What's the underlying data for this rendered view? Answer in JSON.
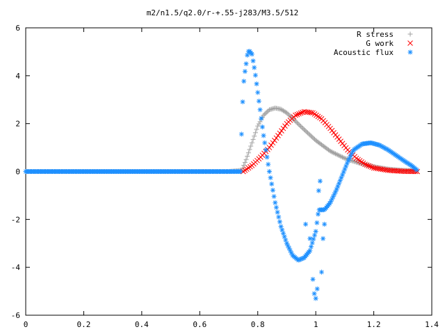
{
  "chart_data": {
    "type": "scatter",
    "title": "m2/n1.5/q2.0/r-+.55-j283/M3.5/512",
    "xlabel": "",
    "ylabel": "",
    "xlim": [
      0,
      1.4
    ],
    "ylim": [
      -6,
      6
    ],
    "x_ticks": [
      "0",
      "0.2",
      "0.4",
      "0.6",
      "0.8",
      "1",
      "1.2",
      "1.4"
    ],
    "y_ticks": [
      "6",
      "4",
      "2",
      "0",
      "-2",
      "-4",
      "-6"
    ],
    "grid": false,
    "legend_position": "top-right",
    "series": [
      {
        "name": "R stress",
        "marker": "plus",
        "color": "#a0a0a0",
        "x": [
          0.0,
          0.1,
          0.2,
          0.3,
          0.4,
          0.5,
          0.6,
          0.7,
          0.745,
          0.76,
          0.78,
          0.8,
          0.82,
          0.84,
          0.86,
          0.88,
          0.9,
          0.93,
          0.96,
          1.0,
          1.05,
          1.1,
          1.15,
          1.2,
          1.25,
          1.3,
          1.35
        ],
        "y": [
          0,
          0,
          0,
          0,
          0,
          0,
          0,
          0,
          0.05,
          0.5,
          1.2,
          1.9,
          2.35,
          2.58,
          2.65,
          2.6,
          2.45,
          2.1,
          1.75,
          1.3,
          0.85,
          0.55,
          0.35,
          0.2,
          0.1,
          0.05,
          0.03
        ]
      },
      {
        "name": "G work",
        "marker": "cross",
        "color": "#ff0000",
        "x": [
          0.75,
          0.78,
          0.81,
          0.84,
          0.87,
          0.9,
          0.93,
          0.96,
          0.99,
          1.02,
          1.05,
          1.08,
          1.11,
          1.14,
          1.17,
          1.2,
          1.25,
          1.3,
          1.35
        ],
        "y": [
          0.0,
          0.25,
          0.6,
          1.0,
          1.5,
          2.0,
          2.35,
          2.5,
          2.45,
          2.2,
          1.8,
          1.35,
          0.9,
          0.55,
          0.3,
          0.15,
          0.05,
          0.01,
          0.0
        ],
        "step": 0.006
      },
      {
        "name": "Acoustic flux",
        "marker": "star",
        "color": "#1e90ff",
        "x": [
          0.0,
          0.2,
          0.4,
          0.6,
          0.74,
          0.745,
          0.75,
          0.755,
          0.76,
          0.765,
          0.77,
          0.78,
          0.79,
          0.8,
          0.82,
          0.84,
          0.86,
          0.88,
          0.9,
          0.92,
          0.94,
          0.96,
          0.98,
          1.0,
          1.01,
          1.03,
          1.05,
          1.07,
          1.09,
          1.11,
          1.13,
          1.16,
          1.19,
          1.22,
          1.25,
          1.28,
          1.31,
          1.33,
          1.35
        ],
        "y": [
          0,
          0,
          0,
          0,
          0,
          1.95,
          3.55,
          4.1,
          4.5,
          4.95,
          5.05,
          4.9,
          4.2,
          3.3,
          1.5,
          0.0,
          -1.3,
          -2.3,
          -3.0,
          -3.5,
          -3.7,
          -3.6,
          -3.3,
          -2.5,
          -1.6,
          -1.6,
          -1.3,
          -0.8,
          -0.2,
          0.4,
          0.9,
          1.15,
          1.2,
          1.1,
          0.9,
          0.65,
          0.4,
          0.25,
          0.05
        ],
        "step": 0.004,
        "scatter_x": [
          0.965,
          0.98,
          0.99,
          0.995,
          1.0,
          1.005,
          1.01,
          1.015,
          1.02,
          1.025,
          1.03
        ],
        "scatter_y": [
          -2.2,
          -2.8,
          -4.5,
          -5.1,
          -5.3,
          -4.9,
          -0.8,
          -0.4,
          -4.2,
          -2.8,
          -2.2
        ]
      }
    ]
  }
}
